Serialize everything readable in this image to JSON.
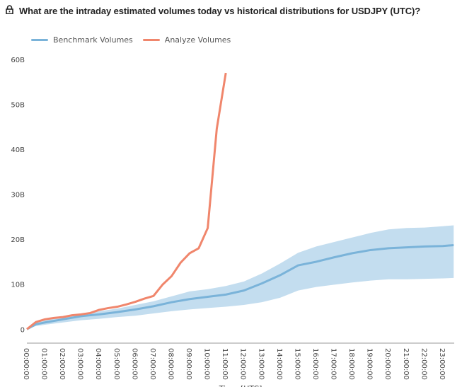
{
  "header": {
    "title": "What are the intraday estimated volumes today vs historical distributions for USDJPY (UTC)?",
    "icon": "lock-icon"
  },
  "colors": {
    "benchmark": "#7ab3d9",
    "band": "#c3ddef",
    "analyze": "#f0866c"
  },
  "chart_data": {
    "type": "line",
    "title": "What are the intraday estimated volumes today vs historical distributions for USDJPY (UTC)?",
    "xlabel": "Time [UTC]",
    "ylabel": "",
    "legend": [
      "Benchmark Volumes",
      "Analyze Volumes"
    ],
    "legend_placement": "top-left",
    "xlim": [
      0,
      23.63
    ],
    "ylim": [
      -3.1,
      60
    ],
    "x_ticks": [
      0,
      1,
      2,
      3,
      4,
      5,
      6,
      7,
      8,
      9,
      10,
      11,
      12,
      13,
      14,
      15,
      16,
      17,
      18,
      19,
      20,
      21,
      22,
      23
    ],
    "x_tick_labels": [
      "00:00:00",
      "01:00:00",
      "02:00:00",
      "03:00:00",
      "04:00:00",
      "05:00:00",
      "06:00:00",
      "07:00:00",
      "08:00:00",
      "09:00:00",
      "10:00:00",
      "11:00:00",
      "12:00:00",
      "13:00:00",
      "14:00:00",
      "15:00:00",
      "16:00:00",
      "17:00:00",
      "18:00:00",
      "19:00:00",
      "20:00:00",
      "21:00:00",
      "22:00:00",
      "23:00:00"
    ],
    "y_ticks": [
      0,
      10,
      20,
      30,
      40,
      50,
      60
    ],
    "y_tick_labels": [
      "0",
      "10B",
      "20B",
      "30B",
      "40B",
      "50B",
      "60B"
    ],
    "series": [
      {
        "name": "Benchmark Volumes",
        "x": [
          0,
          0.5,
          1,
          2,
          3,
          4,
          5,
          6,
          7,
          8,
          9,
          10,
          11,
          12,
          13,
          14,
          15,
          16,
          17,
          18,
          19,
          20,
          21,
          22,
          23,
          23.6
        ],
        "values": [
          0,
          1.1,
          1.5,
          2.2,
          2.9,
          3.3,
          3.8,
          4.4,
          5.1,
          6.0,
          6.7,
          7.2,
          7.7,
          8.6,
          10.2,
          12.0,
          14.2,
          15.0,
          16.0,
          16.9,
          17.6,
          18.0,
          18.2,
          18.4,
          18.5,
          18.7
        ],
        "upper": [
          0,
          1.5,
          2.0,
          2.7,
          3.5,
          4.0,
          4.6,
          5.4,
          6.2,
          7.3,
          8.4,
          8.9,
          9.6,
          10.6,
          12.4,
          14.6,
          17.0,
          18.4,
          19.4,
          20.4,
          21.4,
          22.2,
          22.5,
          22.6,
          22.9,
          23.1
        ],
        "lower": [
          0,
          0.7,
          1.0,
          1.5,
          2.0,
          2.3,
          2.7,
          3.0,
          3.5,
          4.0,
          4.4,
          4.7,
          5.0,
          5.4,
          6.0,
          7.0,
          8.6,
          9.4,
          9.9,
          10.4,
          10.8,
          11.1,
          11.1,
          11.2,
          11.3,
          11.4
        ]
      },
      {
        "name": "Analyze Volumes",
        "x": [
          0,
          0.5,
          1,
          1.5,
          2,
          2.5,
          3,
          3.5,
          4,
          4.5,
          5,
          5.5,
          6,
          6.5,
          7,
          7.5,
          8,
          8.5,
          9,
          9.5,
          10,
          10.5,
          11
        ],
        "values": [
          0,
          1.6,
          2.2,
          2.5,
          2.7,
          3.1,
          3.3,
          3.6,
          4.3,
          4.7,
          5.0,
          5.5,
          6.1,
          6.8,
          7.4,
          9.9,
          11.8,
          14.8,
          16.9,
          18.0,
          22.5,
          44.6,
          57.0
        ]
      }
    ]
  }
}
